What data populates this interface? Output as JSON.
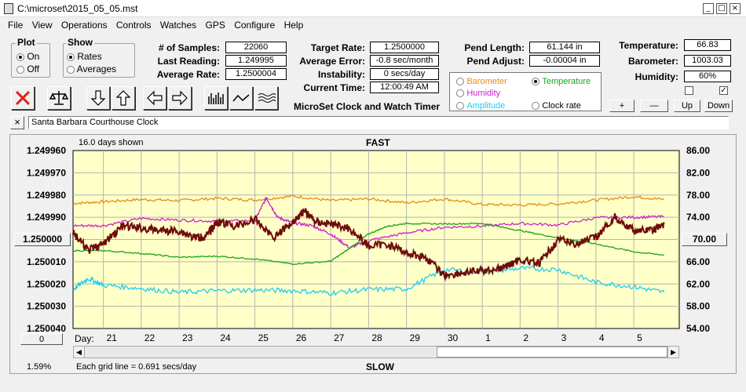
{
  "window": {
    "title": "C:\\microset\\2015_05_05.mst",
    "min": "_",
    "max": "□",
    "close": "×"
  },
  "menu": [
    "File",
    "View",
    "Operations",
    "Controls",
    "Watches",
    "GPS",
    "Configure",
    "Help"
  ],
  "plot_group": {
    "title": "Plot",
    "on": "On",
    "off": "Off",
    "selected": "On"
  },
  "show_group": {
    "title": "Show",
    "rates": "Rates",
    "averages": "Averages",
    "selected": "Rates"
  },
  "stats": [
    {
      "label": "# of Samples:",
      "value": "22060"
    },
    {
      "label": "Last Reading:",
      "value": "1.249995"
    },
    {
      "label": "Average Rate:",
      "value": "1.2500004"
    }
  ],
  "rates": [
    {
      "label": "Target Rate:",
      "value": "1.2500000"
    },
    {
      "label": "Average Error:",
      "value": "-0.8 sec/month"
    },
    {
      "label": "Instability:",
      "value": "0 secs/day"
    },
    {
      "label": "Current Time:",
      "value": "12:00:49 AM"
    }
  ],
  "pend": [
    {
      "label": "Pend Length:",
      "value": "61.144 in"
    },
    {
      "label": "Pend Adjust:",
      "value": "-0.00004 in"
    }
  ],
  "env": [
    {
      "label": "Temperature:",
      "value": "66.83"
    },
    {
      "label": "Barometer:",
      "value": "1003.03"
    },
    {
      "label": "Humidity:",
      "value": "60%"
    }
  ],
  "app_caption": "MicroSet Clock and Watch Timer",
  "legend": [
    {
      "label": "Barometer",
      "color": "#e88a1a",
      "selected": false
    },
    {
      "label": "Temperature",
      "color": "#1aa31a",
      "selected": true
    },
    {
      "label": "Humidity",
      "color": "#cc22cc",
      "selected": false
    },
    {
      "label": "Amplitude",
      "color": "#22ccee",
      "selected": false
    },
    {
      "label": "Clock rate",
      "color": "#000000",
      "selected": false
    }
  ],
  "adjust_buttons": [
    "+",
    "—",
    "Up",
    "Down"
  ],
  "checkbox_right": "✓",
  "clock_name": "Santa Barbara Courthouse Clock",
  "clear_btn": "×",
  "chart": {
    "days_shown": "16.0 days shown",
    "top_label": "FAST",
    "bottom_label": "SLOW",
    "grid_note": "Each grid line = 0.691 secs/day",
    "percent": "1.59%",
    "center_value": "1.250000",
    "right_center_value": "70.00",
    "left_bottom_value": "0",
    "day_label": "Day:"
  },
  "chart_data": {
    "type": "line",
    "title": "",
    "left_axis": {
      "ticks": [
        "1.249960",
        "1.249970",
        "1.249980",
        "1.249990",
        "1.250000",
        "1.250010",
        "1.250020",
        "1.250030",
        "1.250040"
      ],
      "range": [
        1.24996,
        1.25004
      ],
      "inverted": true
    },
    "right_axis": {
      "ticks": [
        "86.00",
        "82.00",
        "78.00",
        "74.00",
        "70.00",
        "66.00",
        "62.00",
        "58.00",
        "54.00"
      ],
      "range": [
        54,
        86
      ]
    },
    "x_ticks": [
      "21",
      "22",
      "23",
      "24",
      "25",
      "26",
      "27",
      "28",
      "29",
      "30",
      "1",
      "2",
      "3",
      "4",
      "5"
    ],
    "x_range": [
      20.2,
      36.2
    ],
    "x_tick_values": [
      21,
      22,
      23,
      24,
      25,
      26,
      27,
      28,
      29,
      30,
      31,
      32,
      33,
      34,
      35
    ],
    "series": [
      {
        "name": "Barometer",
        "color": "#e88a1a",
        "axis": "right",
        "x": [
          20.2,
          21,
          22,
          23,
          24,
          25,
          26,
          27,
          28,
          29,
          30,
          31,
          32,
          33,
          34,
          35,
          35.8
        ],
        "y": [
          76.5,
          76.8,
          77.2,
          77.0,
          77.4,
          77.1,
          77.8,
          77.0,
          77.3,
          76.6,
          77.3,
          76.3,
          76.2,
          76.4,
          77.1,
          77.7,
          77.2
        ]
      },
      {
        "name": "Humidity",
        "color": "#cc22cc",
        "axis": "right",
        "x": [
          20.2,
          21,
          22,
          23,
          24,
          25,
          25.3,
          25.6,
          26,
          26.5,
          27,
          27.5,
          28,
          29,
          30,
          31,
          32,
          33,
          34,
          35,
          35.8
        ],
        "y": [
          72.5,
          72.5,
          73.8,
          73.5,
          73.3,
          73.4,
          77.5,
          74.0,
          73.0,
          72.5,
          71.0,
          68.5,
          69.8,
          71.2,
          72.2,
          72.4,
          72.9,
          72.6,
          73.9,
          74.0,
          74.1
        ]
      },
      {
        "name": "Temperature",
        "color": "#1aa31a",
        "axis": "right",
        "x": [
          20.2,
          21,
          22,
          23,
          24,
          25,
          26,
          27,
          27.5,
          28,
          28.5,
          29,
          30,
          31,
          32,
          33,
          34,
          35,
          35.8
        ],
        "y": [
          68.0,
          68.0,
          67.5,
          66.8,
          67.0,
          66.5,
          65.6,
          66.1,
          68.4,
          71.0,
          72.4,
          72.9,
          72.8,
          72.9,
          71.6,
          70.3,
          69.2,
          67.8,
          67.2
        ]
      },
      {
        "name": "Amplitude",
        "color": "#22ccee",
        "axis": "right",
        "x": [
          20.2,
          20.6,
          21,
          22,
          23,
          24,
          25,
          26,
          27,
          28,
          29,
          30,
          31,
          32,
          33,
          34,
          35,
          35.8
        ],
        "y": [
          61.0,
          63.0,
          61.8,
          61.2,
          60.5,
          60.8,
          60.9,
          60.8,
          60.4,
          61.0,
          61.1,
          64.6,
          64.2,
          64.8,
          64.6,
          62.3,
          61.5,
          60.5
        ]
      },
      {
        "name": "Clock rate",
        "color": "#6e0b0b",
        "axis": "left",
        "x": [
          20.2,
          20.6,
          21,
          21.5,
          22,
          22.5,
          23,
          23.4,
          23.7,
          24,
          24.5,
          25,
          25.5,
          26,
          26.3,
          26.6,
          27,
          27.5,
          28,
          28.5,
          29,
          29.5,
          30,
          30.5,
          31,
          31.5,
          32,
          32.5,
          33,
          33.5,
          34,
          34.5,
          35,
          35.5,
          35.8
        ],
        "y": [
          1.249997,
          1.250005,
          1.250002,
          1.249994,
          1.249995,
          1.249996,
          1.249996,
          1.249999,
          1.249999,
          1.249992,
          1.249994,
          1.249991,
          1.249999,
          1.249992,
          1.249987,
          1.249992,
          1.249993,
          1.249995,
          1.250003,
          1.250002,
          1.250006,
          1.250008,
          1.250016,
          1.250015,
          1.250014,
          1.250013,
          1.250009,
          1.250011,
          1.25,
          1.250002,
          1.249999,
          1.24999,
          1.249996,
          1.249996,
          1.249993
        ]
      }
    ]
  }
}
